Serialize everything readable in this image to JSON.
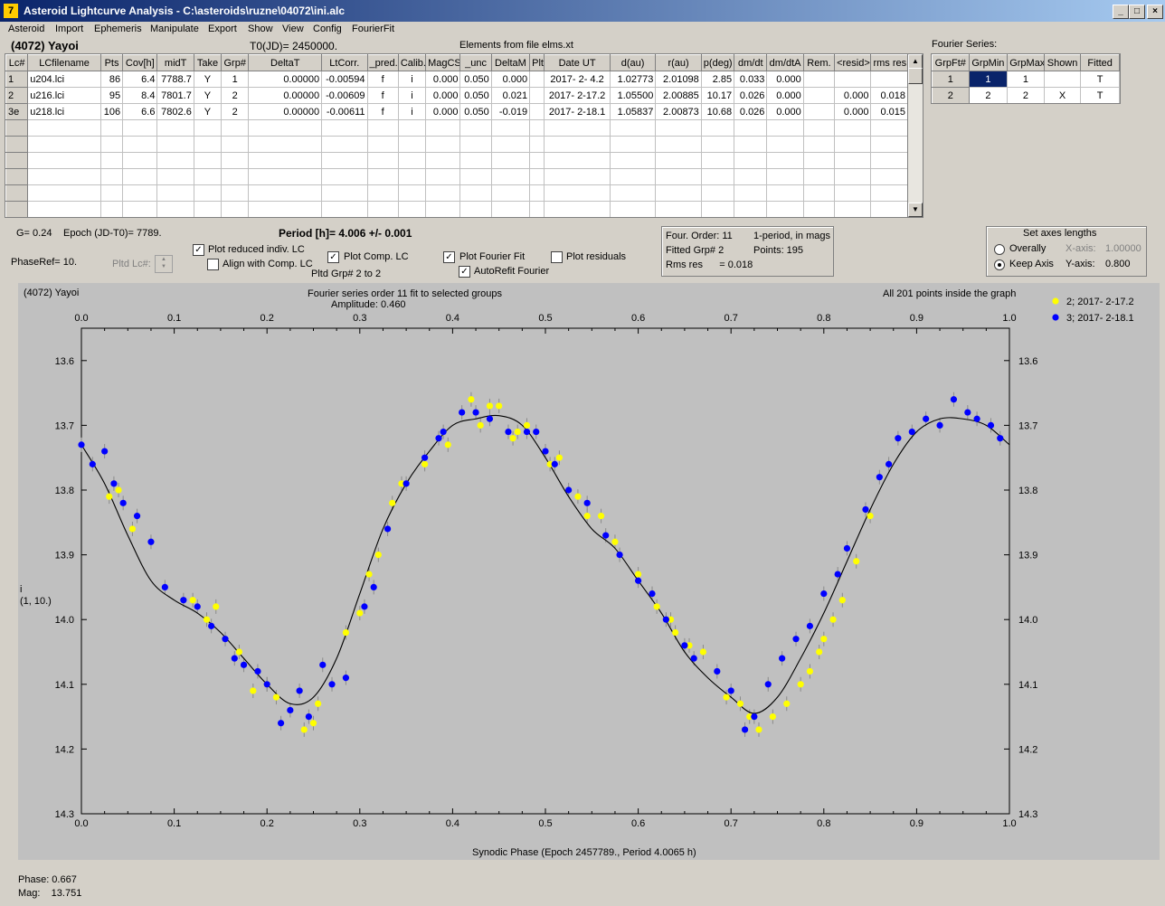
{
  "window": {
    "title": "Asteroid Lightcurve Analysis - C:\\asteroids\\ruzne\\04072\\ini.alc",
    "icon": "app-icon"
  },
  "menu": [
    "Asteroid",
    "Import",
    "Ephemeris",
    "Manipulate",
    "Export",
    "Show",
    "View",
    "Config",
    "FourierFit"
  ],
  "header": {
    "asteroid": "(4072) Yayoi",
    "t0": "T0(JD)= 2450000.",
    "elements": "Elements from file elms.xt"
  },
  "lc_table": {
    "columns": [
      "Lc#",
      "LCfilename",
      "Pts",
      "Cov[h]",
      "midT",
      "Take",
      "Grp#",
      "DeltaT",
      "LtCorr.",
      "_pred.",
      "Calib.",
      "MagCS",
      "_unc",
      "DeltaM",
      "Plt",
      "Date UT",
      "d(au)",
      "r(au)",
      "p(deg)",
      "dm/dt",
      "dm/dtA",
      "Rem.",
      "<resid>",
      "rms res"
    ],
    "rows": [
      [
        "1",
        "u204.lci",
        "86",
        "6.4",
        "7788.7",
        "Y",
        "1",
        "0.00000",
        "-0.00594",
        "f",
        "i",
        "0.000",
        "0.050",
        "0.000",
        "",
        "2017- 2- 4.2",
        "1.02773",
        "2.01098",
        "2.85",
        "0.033",
        "0.000",
        "",
        "",
        ""
      ],
      [
        "2",
        "u216.lci",
        "95",
        "8.4",
        "7801.7",
        "Y",
        "2",
        "0.00000",
        "-0.00609",
        "f",
        "i",
        "0.000",
        "0.050",
        "0.021",
        "",
        "2017- 2-17.2",
        "1.05500",
        "2.00885",
        "10.17",
        "0.026",
        "0.000",
        "",
        "0.000",
        "0.018"
      ],
      [
        "3e",
        "u218.lci",
        "106",
        "6.6",
        "7802.6",
        "Y",
        "2",
        "0.00000",
        "-0.00611",
        "f",
        "i",
        "0.000",
        "0.050",
        "-0.019",
        "",
        "2017- 2-18.1",
        "1.05837",
        "2.00873",
        "10.68",
        "0.026",
        "0.000",
        "",
        "0.000",
        "0.015"
      ]
    ]
  },
  "fourier": {
    "title": "Fourier Series:",
    "columns": [
      "GrpFt#",
      "GrpMin",
      "GrpMax",
      "Shown",
      "Fitted"
    ],
    "rows": [
      [
        "1",
        "1",
        "1",
        "",
        "T"
      ],
      [
        "2",
        "2",
        "2",
        "X",
        "T"
      ]
    ]
  },
  "params": {
    "g": "G= 0.24",
    "epoch": "Epoch (JD-T0)= 7789.",
    "period": "Period [h]= 4.006 +/- 0.001",
    "phaseref": "PhaseRef= 10.",
    "pltd_lc": "Pltd Lc#:",
    "pltd_grp": "Pltd Grp#",
    "grp_from": "2",
    "grp_to_label": "to",
    "grp_to": "2"
  },
  "checks": {
    "reduced": {
      "label": "Plot reduced indiv. LC",
      "checked": true
    },
    "align": {
      "label": "Align with Comp. LC",
      "checked": false
    },
    "comp": {
      "label": "Plot Comp. LC",
      "checked": true
    },
    "fourier": {
      "label": "Plot Fourier Fit",
      "checked": true
    },
    "residuals": {
      "label": "Plot residuals",
      "checked": false
    },
    "autorefit": {
      "label": "AutoRefit Fourier",
      "checked": true
    }
  },
  "fourier_info": {
    "order": "Four. Order: 11",
    "period_note": "1-period, in mags",
    "fitted": "Fitted Grp# 2",
    "points": "Points: 195",
    "rms": "Rms res      = 0.018"
  },
  "axes_box": {
    "title": "Set axes lengths",
    "overally": "Overally",
    "keep": "Keep Axis",
    "x_label": "X-axis:",
    "x_val": "1.00000",
    "y_label": "Y-axis:",
    "y_val": "0.800"
  },
  "plot": {
    "name": "(4072) Yayoi",
    "title": "Fourier series order 11 fit to selected groups",
    "amplitude": "Amplitude: 0.460",
    "inside": "All 201 points inside the graph",
    "ylabel1": "i",
    "ylabel2": "(1, 10.)",
    "xlabel": "Synodic Phase (Epoch 2457789., Period 4.0065 h)"
  },
  "status": {
    "phase": "Phase:  0.667",
    "mag": "Mag:    13.751"
  },
  "chart_data": {
    "type": "scatter",
    "xlim": [
      0.0,
      1.0
    ],
    "ylim": [
      14.3,
      13.55
    ],
    "x_ticks": [
      "0.0",
      "0.1",
      "0.2",
      "0.3",
      "0.4",
      "0.5",
      "0.6",
      "0.7",
      "0.8",
      "0.9",
      "1.0"
    ],
    "y_ticks": [
      "13.6",
      "13.7",
      "13.8",
      "13.9",
      "14.0",
      "14.1",
      "14.2",
      "14.3"
    ],
    "legend_position": "top-right",
    "colors": {
      "yellow": "#ffff00",
      "blue": "#0000ff",
      "fit": "#000000"
    },
    "fourier_fit": {
      "x": [
        0.0,
        0.025,
        0.05,
        0.075,
        0.1,
        0.125,
        0.15,
        0.175,
        0.2,
        0.225,
        0.25,
        0.275,
        0.3,
        0.325,
        0.35,
        0.375,
        0.4,
        0.425,
        0.45,
        0.475,
        0.5,
        0.525,
        0.55,
        0.575,
        0.6,
        0.625,
        0.65,
        0.675,
        0.7,
        0.725,
        0.75,
        0.775,
        0.8,
        0.825,
        0.85,
        0.875,
        0.9,
        0.925,
        0.95,
        0.975,
        1.0
      ],
      "y": [
        13.73,
        13.79,
        13.87,
        13.94,
        13.97,
        13.99,
        14.02,
        14.06,
        14.1,
        14.13,
        14.12,
        14.06,
        13.96,
        13.86,
        13.79,
        13.74,
        13.7,
        13.69,
        13.685,
        13.7,
        13.75,
        13.81,
        13.86,
        13.89,
        13.94,
        13.99,
        14.05,
        14.09,
        14.12,
        14.145,
        14.12,
        14.06,
        13.99,
        13.91,
        13.83,
        13.76,
        13.71,
        13.69,
        13.69,
        13.7,
        13.73
      ]
    },
    "series": [
      {
        "name": "2; 2017- 2-17.2",
        "color": "#ffff00",
        "x": [
          0.03,
          0.04,
          0.055,
          0.12,
          0.135,
          0.145,
          0.17,
          0.185,
          0.2,
          0.21,
          0.24,
          0.25,
          0.255,
          0.285,
          0.3,
          0.31,
          0.32,
          0.335,
          0.345,
          0.37,
          0.395,
          0.42,
          0.43,
          0.44,
          0.45,
          0.465,
          0.47,
          0.48,
          0.505,
          0.515,
          0.535,
          0.545,
          0.56,
          0.575,
          0.6,
          0.62,
          0.635,
          0.64,
          0.655,
          0.67,
          0.695,
          0.71,
          0.72,
          0.73,
          0.745,
          0.76,
          0.775,
          0.785,
          0.795,
          0.8,
          0.81,
          0.82,
          0.835,
          0.85
        ],
        "y": [
          13.81,
          13.8,
          13.86,
          13.97,
          14.0,
          13.98,
          14.05,
          14.11,
          14.1,
          14.12,
          14.17,
          14.16,
          14.13,
          14.02,
          13.99,
          13.93,
          13.9,
          13.82,
          13.79,
          13.76,
          13.73,
          13.66,
          13.7,
          13.67,
          13.67,
          13.72,
          13.71,
          13.7,
          13.76,
          13.75,
          13.81,
          13.84,
          13.84,
          13.88,
          13.93,
          13.98,
          14.0,
          14.02,
          14.04,
          14.05,
          14.12,
          14.13,
          14.15,
          14.17,
          14.15,
          14.13,
          14.1,
          14.08,
          14.05,
          14.03,
          14.0,
          13.97,
          13.91,
          13.84
        ]
      },
      {
        "name": "3; 2017- 2-18.1",
        "color": "#0000ff",
        "x": [
          0.0,
          0.012,
          0.025,
          0.035,
          0.045,
          0.06,
          0.075,
          0.09,
          0.11,
          0.125,
          0.14,
          0.155,
          0.165,
          0.175,
          0.19,
          0.2,
          0.215,
          0.225,
          0.235,
          0.245,
          0.26,
          0.27,
          0.285,
          0.305,
          0.315,
          0.33,
          0.35,
          0.37,
          0.385,
          0.39,
          0.41,
          0.425,
          0.44,
          0.46,
          0.48,
          0.49,
          0.5,
          0.51,
          0.525,
          0.545,
          0.565,
          0.58,
          0.6,
          0.615,
          0.63,
          0.65,
          0.66,
          0.685,
          0.7,
          0.715,
          0.725,
          0.74,
          0.755,
          0.77,
          0.785,
          0.8,
          0.815,
          0.825,
          0.845,
          0.86,
          0.87,
          0.88,
          0.895,
          0.91,
          0.925,
          0.94,
          0.955,
          0.965,
          0.98,
          0.99
        ],
        "y": [
          13.73,
          13.76,
          13.74,
          13.79,
          13.82,
          13.84,
          13.88,
          13.95,
          13.97,
          13.98,
          14.01,
          14.03,
          14.06,
          14.07,
          14.08,
          14.1,
          14.16,
          14.14,
          14.11,
          14.15,
          14.07,
          14.1,
          14.09,
          13.98,
          13.95,
          13.86,
          13.79,
          13.75,
          13.72,
          13.71,
          13.68,
          13.68,
          13.69,
          13.71,
          13.71,
          13.71,
          13.74,
          13.76,
          13.8,
          13.82,
          13.87,
          13.9,
          13.94,
          13.96,
          14.0,
          14.04,
          14.06,
          14.08,
          14.11,
          14.17,
          14.15,
          14.1,
          14.06,
          14.03,
          14.01,
          13.96,
          13.93,
          13.89,
          13.83,
          13.78,
          13.76,
          13.72,
          13.71,
          13.69,
          13.7,
          13.66,
          13.68,
          13.69,
          13.7,
          13.72
        ]
      }
    ]
  }
}
